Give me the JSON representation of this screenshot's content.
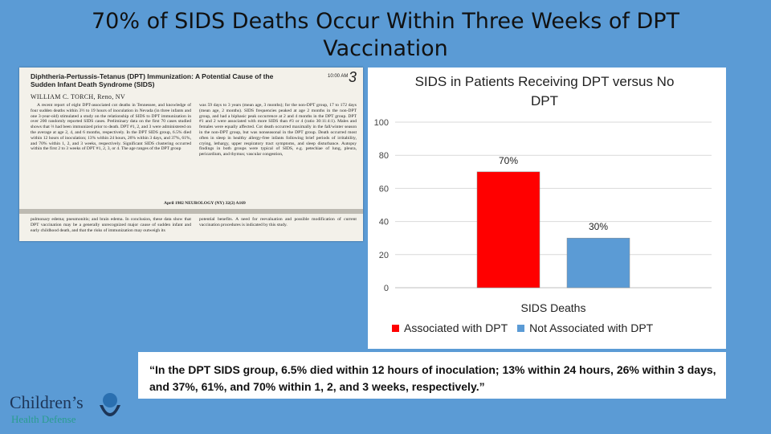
{
  "slide": {
    "title_line1": "70% of SIDS Deaths Occur Within Three Weeks of DPT",
    "title_line2": "Vaccination"
  },
  "paper": {
    "title": "Diphtheria-Pertussis-Tetanus (DPT) Immunization: A Potential Cause of the Sudden Infant Death Syndrome (SIDS)",
    "time": "10:00 AM",
    "page_number": "3",
    "author": "WILLIAM C. TORCH, Reno, NV",
    "col1": "A recent report of eight DPT-associated cot deaths in Tennessee, and knowledge of four sudden deaths within 3½ to 19 hours of inoculation in Nevada (in three infants and one 3-year-old) stimulated a study on the relationship of SIDS to DPT immunization in over 200 randomly reported SIDS cases. Preliminary data on the first 70 cases studied shows that ⅔ had been immunized prior to death. DPT #1, 2, and 3 were administered on the average at age 2, 4, and 6 months, respectively. In the DPT SIDS group, 6.5% died within 12 hours of inoculation; 13% within 24 hours, 26% within 3 days, and 37%, 61%, and 70% within 1, 2, and 3 weeks, respectively. Significant SIDS clustering occurred within the first 2 to 3 weeks of DPT #1, 2, 3, or 4. The age ranges of the DPT group",
    "col2": "was 59 days to 3 years (mean age, 3 months); for the non-DPT group, 17 to 172 days (mean age, 2 months). SIDS frequencies peaked at age 2 months in the non-DPT group, and had a biphasic peak occurrence at 2 and 4 months in the DPT group. DPT #1 and 2 were associated with more SIDS than #3 or 4 (ratio 30:11:4:1). Males and females were equally affected. Cot death occurred maximally in the fall/winter season in the non-DPT group, but was nonseasonal in the DPT group. Death occurred most often in sleep in healthy allergy-free infants following brief periods of irritability, crying, lethargy, upper respiratory tract symptoms, and sleep disturbance. Autopsy findings in both groups were typical of SIDS, e.g. petechiae of lung, pleura, pericardium, and thymus; vascular congestion,",
    "footer": "April 1982    NEUROLOGY (NY) 32(2)    A169",
    "col3": "pulmonary edema; pneumonitis; and brain edema. In conclusion, these data show that DPT vaccination may be a generally unrecognized major cause of sudden infant and early childhood death, and that the risks of immunization may outweigh its",
    "col4": "potential benefits. A need for reevaluation and possible modification of current vaccination procedures is indicated by this study."
  },
  "chart_data": {
    "type": "bar",
    "title": "SIDS in Patients Receiving DPT versus No DPT",
    "categories": [
      "SIDS Deaths"
    ],
    "xlabel": "SIDS Deaths",
    "ylabel": "",
    "ylim": [
      0,
      100
    ],
    "yticks": [
      0,
      20,
      40,
      60,
      80,
      100
    ],
    "grid": true,
    "legend": "bottom",
    "series": [
      {
        "name": "Associated with DPT",
        "values": [
          70
        ],
        "label": "70%",
        "color": "#ff0000"
      },
      {
        "name": "Not Associated with DPT",
        "values": [
          30
        ],
        "label": "30%",
        "color": "#5b9bd5"
      }
    ]
  },
  "quote": {
    "text": "“In the DPT SIDS group, 6.5% died within 12 hours of inoculation; 13% within 24 hours, 26% within 3 days, and 37%, 61%, and 70% within 1, 2, and 3 weeks, respectively.”"
  },
  "logo": {
    "line1": "Children’s",
    "line2": "Health Defense"
  }
}
